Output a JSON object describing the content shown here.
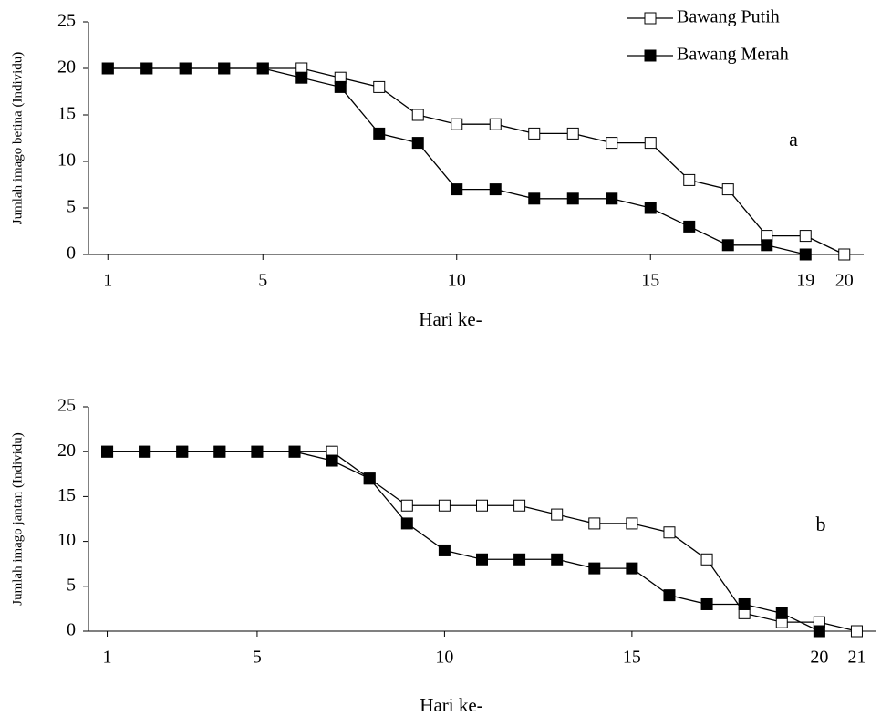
{
  "chart_data": [
    {
      "type": "line",
      "y_label": "Jumlah imago betina (Individu)",
      "x_label": "Hari ke-",
      "annotation": "a",
      "x": [
        1,
        2,
        3,
        4,
        5,
        6,
        7,
        8,
        9,
        10,
        11,
        12,
        13,
        14,
        15,
        16,
        17,
        18,
        19,
        20
      ],
      "xlim": [
        0.5,
        20.5
      ],
      "xticks": [
        1,
        5,
        10,
        15,
        19,
        20
      ],
      "ylim": [
        0,
        25
      ],
      "yticks": [
        0,
        5,
        10,
        15,
        20,
        25
      ],
      "legend": "upper right",
      "series": [
        {
          "name": "Bawang Putih",
          "color": "#ffffff",
          "values": [
            20,
            20,
            20,
            20,
            20,
            20,
            19,
            18,
            15,
            14,
            14,
            13,
            13,
            12,
            12,
            8,
            7,
            2,
            2,
            0
          ]
        },
        {
          "name": "Bawang Merah",
          "color": "#000000",
          "values": [
            20,
            20,
            20,
            20,
            20,
            19,
            18,
            13,
            12,
            7,
            7,
            6,
            6,
            6,
            5,
            3,
            1,
            1,
            0,
            null
          ]
        }
      ]
    },
    {
      "type": "line",
      "y_label": "Jumlah imago jantan (Individu)",
      "x_label": "Hari ke-",
      "annotation": "b",
      "x": [
        1,
        2,
        3,
        4,
        5,
        6,
        7,
        8,
        9,
        10,
        11,
        12,
        13,
        14,
        15,
        16,
        17,
        18,
        19,
        20,
        21
      ],
      "xlim": [
        0.5,
        21.5
      ],
      "xticks": [
        1,
        5,
        10,
        15,
        20,
        21
      ],
      "ylim": [
        0,
        25
      ],
      "yticks": [
        0,
        5,
        10,
        15,
        20,
        25
      ],
      "series": [
        {
          "color": "#ffffff",
          "values": [
            20,
            20,
            20,
            20,
            20,
            20,
            20,
            17,
            14,
            14,
            14,
            14,
            13,
            12,
            12,
            11,
            8,
            2,
            1,
            1,
            0
          ]
        },
        {
          "color": "#000000",
          "values": [
            20,
            20,
            20,
            20,
            20,
            20,
            19,
            17,
            12,
            9,
            8,
            8,
            8,
            7,
            7,
            4,
            3,
            3,
            2,
            0,
            null
          ]
        }
      ]
    }
  ]
}
